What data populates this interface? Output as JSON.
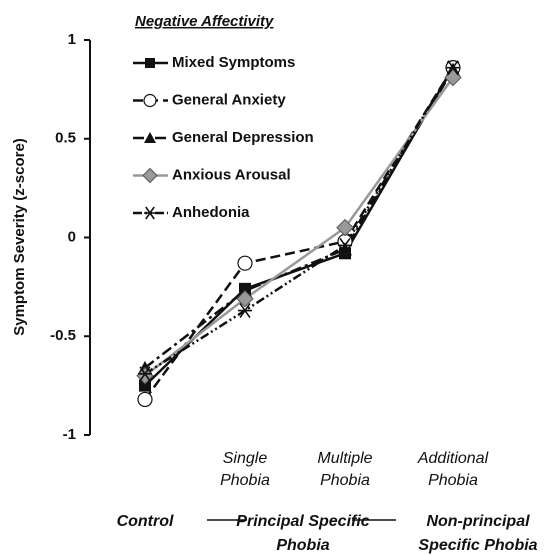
{
  "chart_data": {
    "type": "line",
    "legend_title": "Negative Affectivity",
    "y_label": "Symptom Severity (z-score)",
    "categories": [
      "Control",
      "Single Phobia",
      "Multiple Phobia",
      "Additional Phobia"
    ],
    "groups": [
      "Principal Specific Phobia",
      "Non-principal Specific Phobia"
    ],
    "ylim": [
      -1,
      1
    ],
    "yticks": [
      -1,
      -0.5,
      0,
      0.5,
      1
    ],
    "legend": "upper left",
    "series": [
      {
        "name": "Mixed Symptoms",
        "color": "#111111",
        "marker": "square",
        "dash": "solid",
        "values": [
          -0.75,
          -0.26,
          -0.08,
          0.86
        ]
      },
      {
        "name": "General Anxiety",
        "color": "#111111",
        "marker": "circle",
        "dash": "dashed",
        "values": [
          -0.82,
          -0.13,
          -0.02,
          0.86
        ]
      },
      {
        "name": "General Depression",
        "color": "#111111",
        "marker": "triangle",
        "dash": "dashdot",
        "values": [
          -0.66,
          -0.27,
          -0.06,
          0.85
        ]
      },
      {
        "name": "Anxious Arousal",
        "color": "#999999",
        "marker": "diamond",
        "dash": "solid",
        "values": [
          -0.7,
          -0.31,
          0.05,
          0.81
        ]
      },
      {
        "name": "Anhedonia",
        "color": "#111111",
        "marker": "asterisk",
        "dash": "dashdotdot",
        "values": [
          -0.69,
          -0.37,
          -0.04,
          0.86
        ]
      }
    ]
  }
}
